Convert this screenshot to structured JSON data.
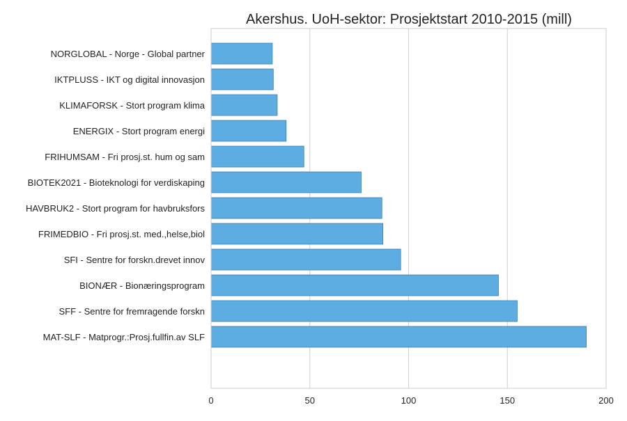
{
  "chart_data": {
    "type": "bar",
    "orientation": "horizontal",
    "title": "Akershus. UoH-sektor: Prosjektstart 2010-2015 (mill)",
    "xlabel": "",
    "ylabel": "",
    "xlim": [
      0,
      200
    ],
    "x_ticks": [
      0,
      50,
      100,
      150,
      200
    ],
    "grid": "vertical",
    "bar_color": "#5dade2",
    "bar_edge_color": "#3d7fae",
    "categories": [
      "NORGLOBAL - Norge - Global partner",
      "IKTPLUSS - IKT og digital innovasjon",
      "KLIMAFORSK - Stort program klima",
      "ENERGIX - Stort program energi",
      "FRIHUMSAM - Fri prosj.st. hum og sam",
      "BIOTEK2021 - Bioteknologi for verdiskaping",
      "HAVBRUK2 - Stort program for havbruksfors",
      "FRIMEDBIO - Fri prosj.st. med.,helse,biol",
      "SFI - Sentre for forskn.drevet innov",
      "BIONÆR - Bionæringsprogram",
      "SFF - Sentre for fremragende forskn",
      "MAT-SLF - Matprogr.:Prosj.fullfin.av SLF"
    ],
    "values": [
      31,
      31.5,
      33.5,
      38,
      47,
      76,
      86.5,
      87,
      96,
      145.5,
      155,
      190
    ]
  }
}
